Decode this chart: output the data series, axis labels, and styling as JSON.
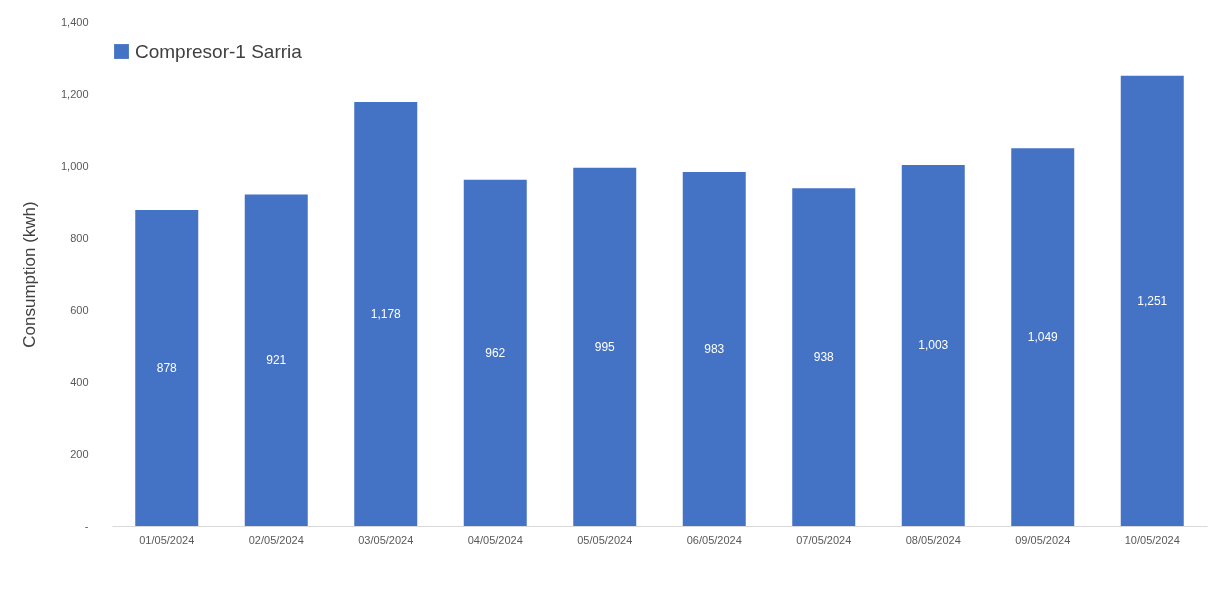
{
  "chart_data": {
    "type": "bar",
    "ylabel": "Consumption (kwh)",
    "categories": [
      "01/05/2024",
      "02/05/2024",
      "03/05/2024",
      "04/05/2024",
      "05/05/2024",
      "06/05/2024",
      "07/05/2024",
      "08/05/2024",
      "09/05/2024",
      "10/05/2024"
    ],
    "series": [
      {
        "name": "Compresor-1 Sarria",
        "color": "#4472c4",
        "values": [
          878,
          921,
          1178,
          962,
          995,
          983,
          938,
          1003,
          1049,
          1251
        ],
        "value_labels": [
          "878",
          "921",
          "1,178",
          "962",
          "995",
          "983",
          "938",
          "1,003",
          "1,049",
          "1,251"
        ]
      }
    ],
    "ylim": [
      0,
      1400
    ],
    "yticks": [
      {
        "value": 0,
        "label": "-"
      },
      200,
      400,
      600,
      800,
      {
        "value": 1000,
        "label": "1,000"
      },
      {
        "value": 1200,
        "label": "1,200"
      },
      {
        "value": 1400,
        "label": "1,400"
      }
    ],
    "grid": false,
    "legend": "top"
  }
}
